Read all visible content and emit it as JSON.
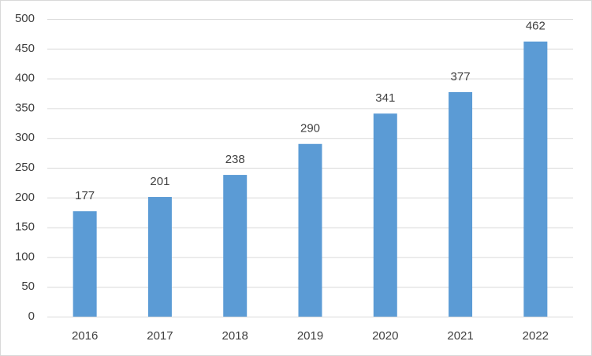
{
  "chart_data": {
    "type": "bar",
    "categories": [
      "2016",
      "2017",
      "2018",
      "2019",
      "2020",
      "2021",
      "2022"
    ],
    "values": [
      177,
      201,
      238,
      290,
      341,
      377,
      462
    ],
    "color": "#5b9bd5",
    "ylim": [
      0,
      500
    ],
    "yticks": [
      0,
      50,
      100,
      150,
      200,
      250,
      300,
      350,
      400,
      450,
      500
    ],
    "grid": true,
    "data_labels": true
  }
}
